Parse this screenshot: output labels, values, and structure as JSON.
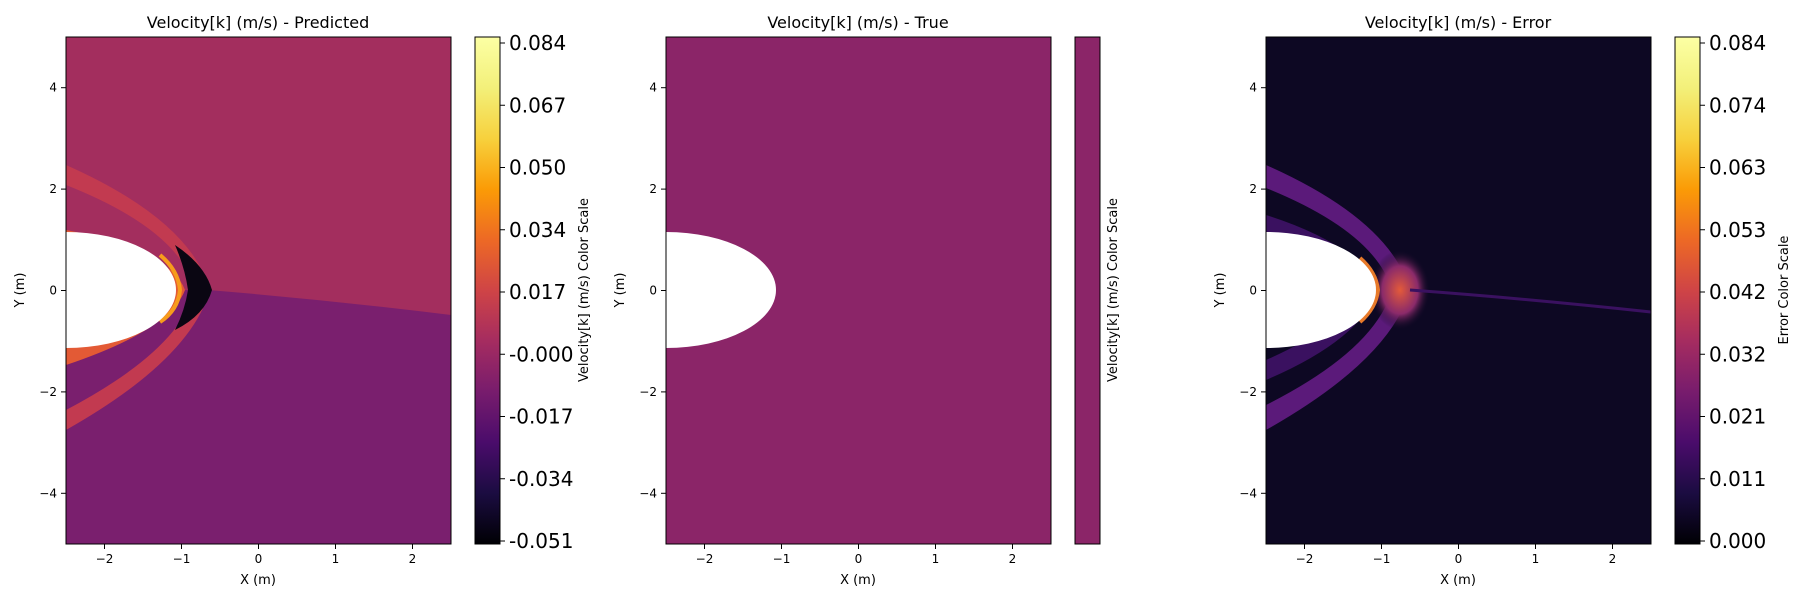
{
  "chart_data": [
    {
      "type": "heatmap",
      "title": "Velocity[k] (m/s) - Predicted",
      "xlabel": "X (m)",
      "ylabel": "Y (m)",
      "xlim": [
        -2.5,
        2.5
      ],
      "ylim": [
        -5,
        5
      ],
      "xticks": [
        -2,
        -1,
        0,
        1,
        2
      ],
      "yticks": [
        -4,
        -2,
        0,
        2,
        4
      ],
      "obstacle": {
        "shape": "half-ellipse",
        "center_x": -2.5,
        "semi_axis_x": 1.42,
        "semi_axis_y": 1.16,
        "fill": "#ffffff"
      },
      "field": {
        "upper_region_color": "#a32e5e",
        "lower_region_color": "#7a1f6e",
        "shock_inner_color": "#e35a35",
        "shock_outer_color": "#c23a50",
        "dark_core_color": "#0a0612",
        "highlight_color": "#f79c1c"
      },
      "colorbar": {
        "label": "Velocity[k] (m/s) Color Scale",
        "colormap": "inferno",
        "range": [
          -0.051,
          0.084
        ],
        "ticks": [
          "0.084",
          "0.067",
          "0.050",
          "0.034",
          "0.017",
          "-0.000",
          "-0.017",
          "-0.034",
          "-0.051"
        ]
      }
    },
    {
      "type": "heatmap",
      "title": "Velocity[k] (m/s) - True",
      "xlabel": "X (m)",
      "ylabel": "Y (m)",
      "xlim": [
        -2.5,
        2.5
      ],
      "ylim": [
        -5,
        5
      ],
      "xticks": [
        -2,
        -1,
        0,
        1,
        2
      ],
      "yticks": [
        -4,
        -2,
        0,
        2,
        4
      ],
      "obstacle": {
        "shape": "half-ellipse",
        "center_x": -2.5,
        "semi_axis_x": 1.42,
        "semi_axis_y": 1.16,
        "fill": "#ffffff"
      },
      "field": {
        "uniform_color": "#8b2568"
      },
      "colorbar": {
        "label": "Velocity[k] (m/s) Color Scale",
        "colormap": "inferno",
        "uniform_color": "#8b2568",
        "ticks": []
      }
    },
    {
      "type": "heatmap",
      "title": "Velocity[k] (m/s) - Error",
      "xlabel": "X (m)",
      "ylabel": "Y (m)",
      "xlim": [
        -2.5,
        2.5
      ],
      "ylim": [
        -5,
        5
      ],
      "xticks": [
        -2,
        -1,
        0,
        1,
        2
      ],
      "yticks": [
        -4,
        -2,
        0,
        2,
        4
      ],
      "obstacle": {
        "shape": "half-ellipse",
        "center_x": -2.5,
        "semi_axis_x": 1.42,
        "semi_axis_y": 1.16,
        "fill": "#ffffff"
      },
      "field": {
        "background_color": "#0d0823",
        "shock_color": "#5b1a7a",
        "hot_color": "#d9553a",
        "edge_color": "#e87a2a"
      },
      "colorbar": {
        "label": "Error Color Scale",
        "colormap": "inferno",
        "range": [
          0.0,
          0.084
        ],
        "ticks": [
          "0.084",
          "0.074",
          "0.063",
          "0.053",
          "0.042",
          "0.032",
          "0.021",
          "0.011",
          "0.000"
        ]
      }
    }
  ]
}
